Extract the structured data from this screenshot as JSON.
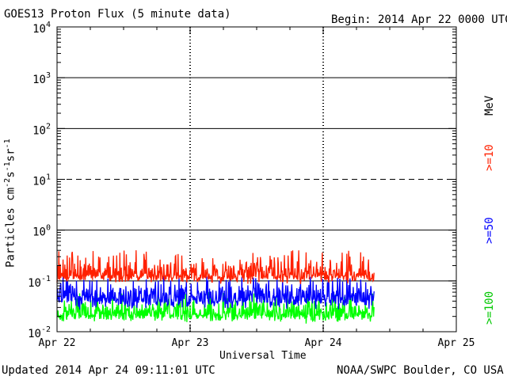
{
  "header": {
    "title": "GOES13 Proton Flux (5 minute data)",
    "begin": "Begin: 2014 Apr 22 0000 UTC"
  },
  "footer": {
    "updated": "Updated 2014 Apr 24 09:11:01 UTC",
    "credit": "NOAA/SWPC Boulder, CO USA"
  },
  "chart_data": {
    "type": "line",
    "title": "GOES13 Proton Flux (5 minute data)",
    "xlabel": "Universal Time",
    "ylabel": "Particles cm^-2 s^-1 sr^-1",
    "ylabel_parts": {
      "main": "Particles cm",
      "e1": "-2",
      "s": "s",
      "e2": "-1",
      "sr": "sr",
      "e3": "-1"
    },
    "y_scale": "log",
    "ylim": [
      0.01,
      10000
    ],
    "y_ticks": [
      {
        "value": 0.01,
        "base": "10",
        "exp": "-2"
      },
      {
        "value": 0.1,
        "base": "10",
        "exp": "-1"
      },
      {
        "value": 1,
        "base": "10",
        "exp": "0"
      },
      {
        "value": 10,
        "base": "10",
        "exp": "1"
      },
      {
        "value": 100,
        "base": "10",
        "exp": "2"
      },
      {
        "value": 1000,
        "base": "10",
        "exp": "3"
      },
      {
        "value": 10000,
        "base": "10",
        "exp": "4"
      }
    ],
    "threshold_lines": [
      {
        "value": 10,
        "style": "dashed"
      },
      {
        "value": 1000,
        "style": "solid"
      },
      {
        "value": 100,
        "style": "solid"
      },
      {
        "value": 1,
        "style": "solid"
      },
      {
        "value": 0.1,
        "style": "solid"
      }
    ],
    "x_days": [
      "Apr 22",
      "Apr 23",
      "Apr 24",
      "Apr 25"
    ],
    "xlim_hours": [
      0,
      72
    ],
    "data_end_hour": 57.2,
    "grid": "dashed vertical at day boundaries",
    "series": [
      {
        "name": ">=10 MeV",
        "color": "#ff2000",
        "approx_value": 0.13,
        "min": 0.08,
        "max": 0.4
      },
      {
        "name": ">=50",
        "color": "#0000ff",
        "approx_value": 0.045,
        "min": 0.025,
        "max": 0.13
      },
      {
        "name": ">=100",
        "color": "#00ff00",
        "approx_value": 0.022,
        "min": 0.014,
        "max": 0.06
      }
    ],
    "legend": {
      "position": "right",
      "items": [
        {
          "label": ">=10",
          "unit": "MeV",
          "color": "#ff2000"
        },
        {
          "label": ">=50",
          "color": "#0000ff"
        },
        {
          "label": ">=100",
          "color": "#00ff00"
        }
      ]
    }
  }
}
